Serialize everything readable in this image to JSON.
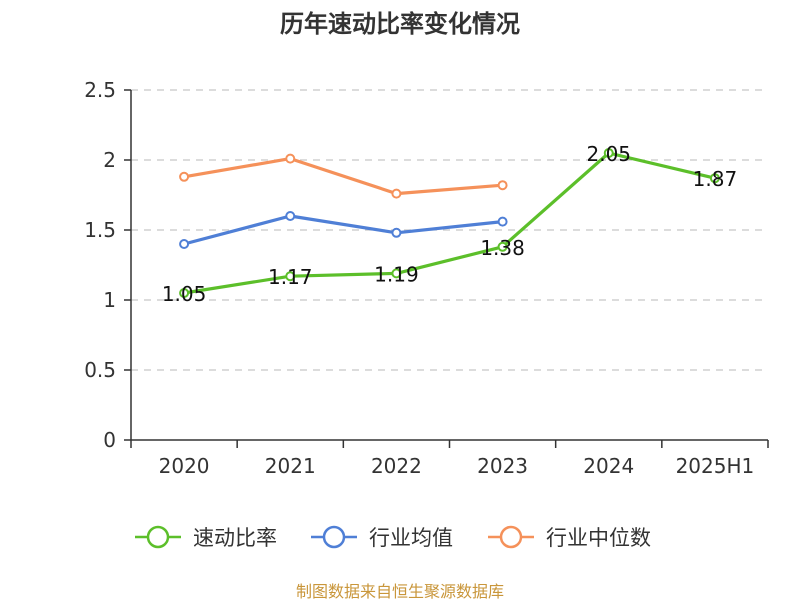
{
  "chart_data": {
    "type": "line",
    "title": "历年速动比率变化情况",
    "categories": [
      "2020",
      "2021",
      "2022",
      "2023",
      "2024",
      "2025H1"
    ],
    "ylim": [
      0,
      2.5
    ],
    "yticks": [
      "0",
      "0.5",
      "1",
      "1.5",
      "2",
      "2.5"
    ],
    "ytick_values": [
      0,
      0.5,
      1,
      1.5,
      2,
      2.5
    ],
    "grid": "horizontal-dashed",
    "legend_position": "bottom",
    "series": [
      {
        "name": "速动比率",
        "color": "#5cbf2a",
        "values": [
          1.05,
          1.17,
          1.19,
          1.38,
          2.05,
          1.87
        ],
        "labels": [
          "1.05",
          "1.17",
          "1.19",
          "1.38",
          "2.05",
          "1.87"
        ]
      },
      {
        "name": "行业均值",
        "color": "#4f7fd6",
        "values": [
          1.4,
          1.6,
          1.48,
          1.56,
          null,
          null
        ]
      },
      {
        "name": "行业中位数",
        "color": "#f5915a",
        "values": [
          1.88,
          2.01,
          1.76,
          1.82,
          null,
          null
        ]
      }
    ]
  },
  "source": "制图数据来自恒生聚源数据库"
}
